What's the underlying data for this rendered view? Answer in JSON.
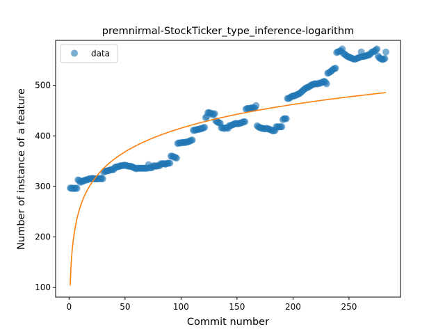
{
  "chart_data": {
    "type": "scatter",
    "title": "premnirmal-StockTicker_type_inference-logarithm",
    "xlabel": "Commit number",
    "ylabel": "Number of instance of a feature",
    "xlim": [
      -12,
      296
    ],
    "ylim": [
      81,
      589
    ],
    "xticks": [
      0,
      50,
      100,
      150,
      200,
      250
    ],
    "yticks": [
      100,
      200,
      300,
      400,
      500
    ],
    "grid": false,
    "legend": {
      "placement": "top-left",
      "entries": [
        "data"
      ]
    },
    "colors": {
      "data": "#1f77b4",
      "fit": "#ff7f0e"
    },
    "series": [
      {
        "name": "data",
        "kind": "scatter",
        "points": [
          [
            1,
            297
          ],
          [
            2,
            296
          ],
          [
            3,
            297
          ],
          [
            4,
            296
          ],
          [
            5,
            296
          ],
          [
            6,
            297
          ],
          [
            7,
            296
          ],
          [
            8,
            313
          ],
          [
            9,
            312
          ],
          [
            10,
            308
          ],
          [
            11,
            310
          ],
          [
            12,
            310
          ],
          [
            13,
            311
          ],
          [
            14,
            312
          ],
          [
            15,
            313
          ],
          [
            16,
            313
          ],
          [
            17,
            314
          ],
          [
            18,
            315
          ],
          [
            19,
            315
          ],
          [
            20,
            315
          ],
          [
            21,
            316
          ],
          [
            22,
            315
          ],
          [
            23,
            315
          ],
          [
            24,
            315
          ],
          [
            25,
            315
          ],
          [
            26,
            315
          ],
          [
            27,
            316
          ],
          [
            28,
            315
          ],
          [
            29,
            316
          ],
          [
            30,
            315
          ],
          [
            31,
            328
          ],
          [
            32,
            330
          ],
          [
            33,
            330
          ],
          [
            34,
            331
          ],
          [
            35,
            331
          ],
          [
            36,
            332
          ],
          [
            37,
            333
          ],
          [
            38,
            333
          ],
          [
            39,
            333
          ],
          [
            40,
            334
          ],
          [
            41,
            338
          ],
          [
            42,
            338
          ],
          [
            43,
            339
          ],
          [
            44,
            339
          ],
          [
            45,
            340
          ],
          [
            46,
            341
          ],
          [
            47,
            341
          ],
          [
            48,
            341
          ],
          [
            49,
            342
          ],
          [
            50,
            342
          ],
          [
            51,
            341
          ],
          [
            52,
            341
          ],
          [
            53,
            340
          ],
          [
            54,
            340
          ],
          [
            55,
            340
          ],
          [
            56,
            339
          ],
          [
            57,
            338
          ],
          [
            58,
            337
          ],
          [
            59,
            336
          ],
          [
            60,
            335
          ],
          [
            61,
            336
          ],
          [
            62,
            336
          ],
          [
            63,
            336
          ],
          [
            64,
            336
          ],
          [
            65,
            336
          ],
          [
            66,
            336
          ],
          [
            67,
            336
          ],
          [
            68,
            336
          ],
          [
            69,
            336
          ],
          [
            70,
            336
          ],
          [
            71,
            343
          ],
          [
            72,
            337
          ],
          [
            73,
            337
          ],
          [
            74,
            337
          ],
          [
            75,
            340
          ],
          [
            76,
            341
          ],
          [
            77,
            340
          ],
          [
            78,
            340
          ],
          [
            79,
            341
          ],
          [
            80,
            341
          ],
          [
            81,
            341
          ],
          [
            82,
            345
          ],
          [
            83,
            345
          ],
          [
            84,
            345
          ],
          [
            85,
            345
          ],
          [
            86,
            344
          ],
          [
            87,
            345
          ],
          [
            88,
            346
          ],
          [
            89,
            346
          ],
          [
            90,
            346
          ],
          [
            91,
            360
          ],
          [
            92,
            360
          ],
          [
            93,
            359
          ],
          [
            94,
            358
          ],
          [
            95,
            357
          ],
          [
            96,
            356
          ],
          [
            97,
            385
          ],
          [
            98,
            386
          ],
          [
            99,
            386
          ],
          [
            100,
            386
          ],
          [
            101,
            387
          ],
          [
            102,
            387
          ],
          [
            103,
            387
          ],
          [
            104,
            387
          ],
          [
            105,
            388
          ],
          [
            106,
            388
          ],
          [
            107,
            389
          ],
          [
            108,
            390
          ],
          [
            109,
            391
          ],
          [
            110,
            392
          ],
          [
            111,
            411
          ],
          [
            112,
            411
          ],
          [
            113,
            412
          ],
          [
            114,
            412
          ],
          [
            115,
            413
          ],
          [
            116,
            413
          ],
          [
            117,
            414
          ],
          [
            118,
            414
          ],
          [
            119,
            415
          ],
          [
            120,
            416
          ],
          [
            121,
            417
          ],
          [
            122,
            436
          ],
          [
            123,
            438
          ],
          [
            124,
            446
          ],
          [
            125,
            446
          ],
          [
            126,
            445
          ],
          [
            127,
            445
          ],
          [
            128,
            442
          ],
          [
            129,
            443
          ],
          [
            130,
            444
          ],
          [
            131,
            430
          ],
          [
            132,
            428
          ],
          [
            133,
            427
          ],
          [
            134,
            426
          ],
          [
            135,
            425
          ],
          [
            136,
            416
          ],
          [
            137,
            416
          ],
          [
            138,
            415
          ],
          [
            139,
            415
          ],
          [
            140,
            416
          ],
          [
            141,
            416
          ],
          [
            142,
            415
          ],
          [
            143,
            420
          ],
          [
            144,
            420
          ],
          [
            145,
            421
          ],
          [
            146,
            422
          ],
          [
            147,
            423
          ],
          [
            148,
            424
          ],
          [
            149,
            425
          ],
          [
            150,
            424
          ],
          [
            151,
            424
          ],
          [
            152,
            425
          ],
          [
            153,
            425
          ],
          [
            154,
            426
          ],
          [
            155,
            427
          ],
          [
            156,
            428
          ],
          [
            157,
            428
          ],
          [
            158,
            453
          ],
          [
            159,
            454
          ],
          [
            160,
            454
          ],
          [
            161,
            454
          ],
          [
            162,
            455
          ],
          [
            163,
            455
          ],
          [
            164,
            456
          ],
          [
            165,
            455
          ],
          [
            166,
            455
          ],
          [
            167,
            460
          ],
          [
            168,
            420
          ],
          [
            169,
            418
          ],
          [
            170,
            417
          ],
          [
            171,
            416
          ],
          [
            172,
            415
          ],
          [
            173,
            415
          ],
          [
            174,
            414
          ],
          [
            175,
            414
          ],
          [
            176,
            415
          ],
          [
            177,
            414
          ],
          [
            178,
            414
          ],
          [
            179,
            413
          ],
          [
            180,
            412
          ],
          [
            181,
            411
          ],
          [
            182,
            410
          ],
          [
            183,
            410
          ],
          [
            184,
            411
          ],
          [
            185,
            418
          ],
          [
            186,
            418
          ],
          [
            187,
            418
          ],
          [
            188,
            418
          ],
          [
            189,
            418
          ],
          [
            190,
            418
          ],
          [
            191,
            432
          ],
          [
            192,
            434
          ],
          [
            193,
            434
          ],
          [
            194,
            434
          ],
          [
            195,
            474
          ],
          [
            196,
            474
          ],
          [
            197,
            475
          ],
          [
            198,
            477
          ],
          [
            199,
            478
          ],
          [
            200,
            479
          ],
          [
            201,
            479
          ],
          [
            202,
            480
          ],
          [
            203,
            481
          ],
          [
            204,
            482
          ],
          [
            205,
            483
          ],
          [
            206,
            484
          ],
          [
            207,
            486
          ],
          [
            208,
            488
          ],
          [
            209,
            490
          ],
          [
            210,
            492
          ],
          [
            211,
            494
          ],
          [
            212,
            495
          ],
          [
            213,
            496
          ],
          [
            214,
            497
          ],
          [
            215,
            498
          ],
          [
            216,
            500
          ],
          [
            217,
            501
          ],
          [
            218,
            502
          ],
          [
            219,
            503
          ],
          [
            220,
            503
          ],
          [
            221,
            503
          ],
          [
            222,
            503
          ],
          [
            223,
            504
          ],
          [
            224,
            504
          ],
          [
            225,
            505
          ],
          [
            226,
            506
          ],
          [
            227,
            507
          ],
          [
            228,
            508
          ],
          [
            229,
            506
          ],
          [
            230,
            503
          ],
          [
            231,
            524
          ],
          [
            232,
            525
          ],
          [
            233,
            526
          ],
          [
            234,
            528
          ],
          [
            235,
            530
          ],
          [
            236,
            532
          ],
          [
            237,
            533
          ],
          [
            238,
            534
          ],
          [
            239,
            565
          ],
          [
            240,
            566
          ],
          [
            241,
            567
          ],
          [
            242,
            568
          ],
          [
            243,
            568
          ],
          [
            244,
            572
          ],
          [
            245,
            563
          ],
          [
            246,
            562
          ],
          [
            247,
            560
          ],
          [
            248,
            558
          ],
          [
            249,
            557
          ],
          [
            250,
            556
          ],
          [
            251,
            555
          ],
          [
            252,
            554
          ],
          [
            253,
            553
          ],
          [
            254,
            552
          ],
          [
            255,
            552
          ],
          [
            256,
            552
          ],
          [
            257,
            553
          ],
          [
            258,
            554
          ],
          [
            259,
            555
          ],
          [
            260,
            556
          ],
          [
            261,
            566
          ],
          [
            262,
            557
          ],
          [
            263,
            557
          ],
          [
            264,
            558
          ],
          [
            265,
            558
          ],
          [
            266,
            559
          ],
          [
            267,
            560
          ],
          [
            268,
            560
          ],
          [
            269,
            562
          ],
          [
            270,
            565
          ],
          [
            271,
            566
          ],
          [
            272,
            567
          ],
          [
            273,
            568
          ],
          [
            274,
            570
          ],
          [
            275,
            572
          ],
          [
            276,
            558
          ],
          [
            277,
            555
          ],
          [
            278,
            553
          ],
          [
            279,
            552
          ],
          [
            280,
            551
          ],
          [
            281,
            552
          ],
          [
            282,
            553
          ],
          [
            283,
            566
          ]
        ]
      },
      {
        "kind": "line",
        "fit": {
          "form": "a + b*ln(x)",
          "a": 104,
          "b": 67.6,
          "x_range": [
            1,
            283
          ]
        }
      }
    ]
  }
}
